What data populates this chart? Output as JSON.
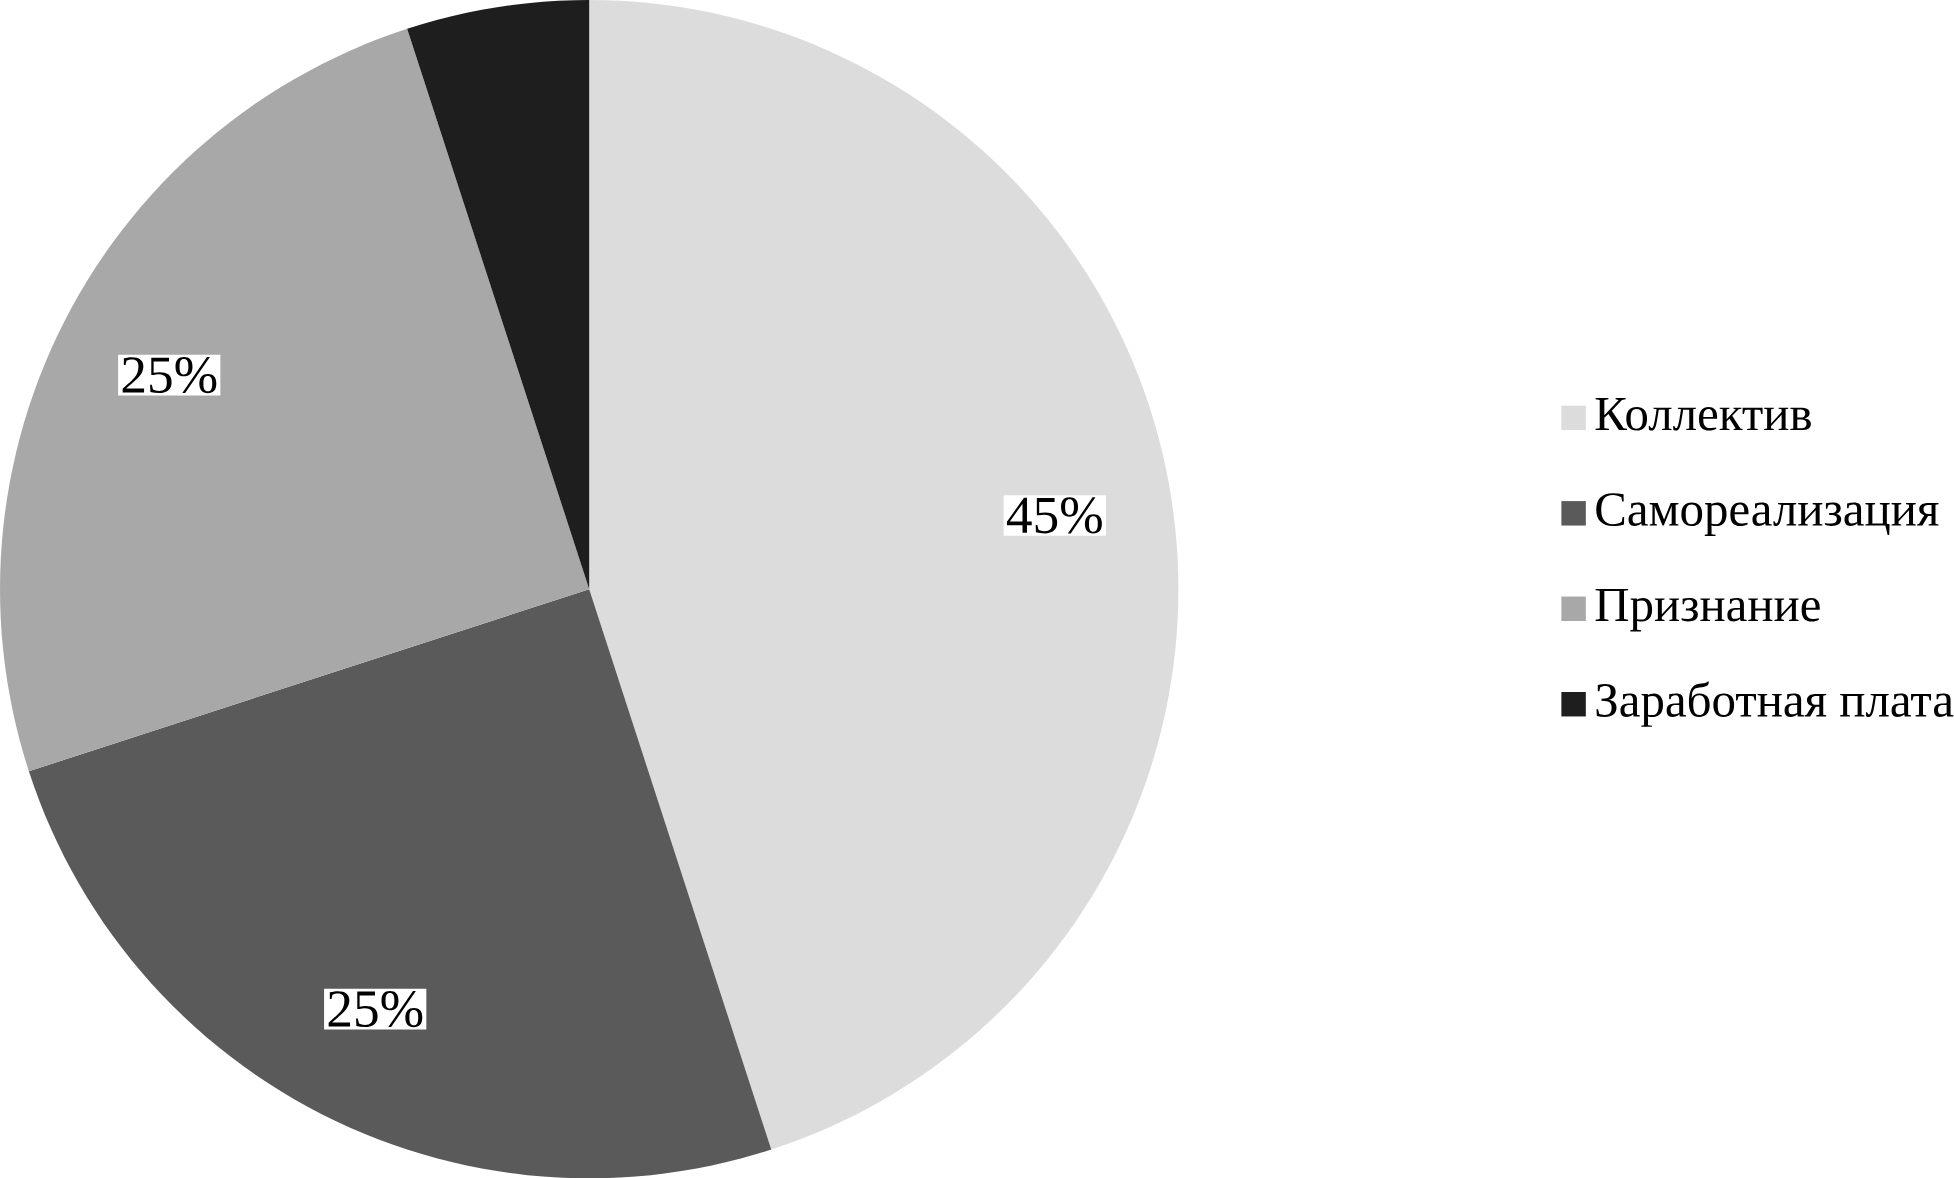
{
  "chart_data": {
    "type": "pie",
    "categories": [
      "Коллектив",
      "Самореализация",
      "Признание",
      "Заработная плата"
    ],
    "values": [
      45,
      25,
      25,
      5
    ],
    "colors": [
      "#dcdcdc",
      "#5a5a5a",
      "#a8a8a8",
      "#1e1e1e"
    ],
    "value_labels": [
      "45%",
      "25%",
      "25%",
      null
    ],
    "legend": "right"
  }
}
